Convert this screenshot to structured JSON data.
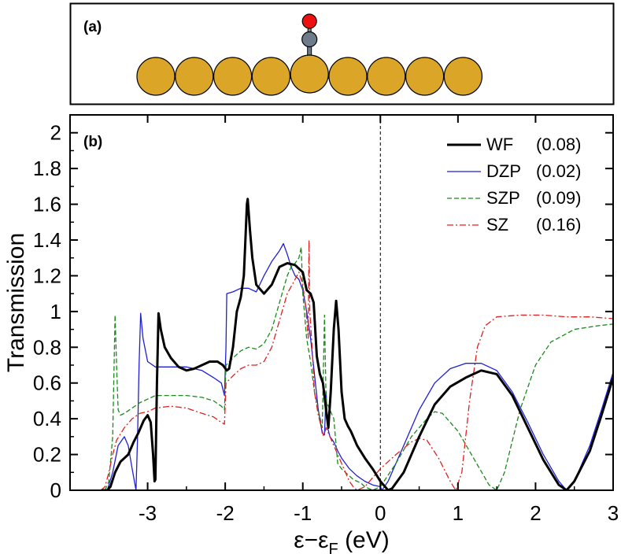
{
  "panel_a": {
    "label": "(a)",
    "gold_atom_color": "#dba628",
    "carbon_color": "#6d7b8b",
    "oxygen_color": "#ee1111",
    "gold_atom_count": 9,
    "adsorbate_on_atom_index": 4
  },
  "chart_data": {
    "type": "line",
    "panel_label": "(b)",
    "title": "",
    "xlabel_main": "ε−ε",
    "xlabel_sub": "F",
    "xlabel_unit": " (eV)",
    "ylabel": "Transmission",
    "xlim": [
      -4,
      3
    ],
    "ylim": [
      0,
      2.1
    ],
    "xticks": [
      -3,
      -2,
      -1,
      0,
      1,
      2,
      3
    ],
    "xtick_labels": [
      "-3",
      "-2",
      "-1",
      "0",
      "1",
      "2",
      "3"
    ],
    "yticks": [
      0,
      0.2,
      0.4,
      0.6,
      0.8,
      1,
      1.2,
      1.4,
      1.6,
      1.8,
      2
    ],
    "ytick_labels": [
      "0",
      "0.2",
      "0.4",
      "0.6",
      "0.8",
      "1",
      "1.2",
      "1.4",
      "1.6",
      "1.8",
      "2"
    ],
    "fermi_line_x": 0,
    "legend_position": "top-right",
    "grid": false,
    "series": [
      {
        "name": "WF",
        "legend_value": "(0.08)",
        "color": "#000000",
        "dash": "",
        "width": 3,
        "points": [
          [
            -3.6,
            0
          ],
          [
            -3.52,
            0
          ],
          [
            -3.48,
            0.02
          ],
          [
            -3.42,
            0.1
          ],
          [
            -3.35,
            0.16
          ],
          [
            -3.25,
            0.2
          ],
          [
            -3.18,
            0.27
          ],
          [
            -3.12,
            0.32
          ],
          [
            -3.05,
            0.39
          ],
          [
            -3.0,
            0.42
          ],
          [
            -2.96,
            0.38
          ],
          [
            -2.93,
            0.2
          ],
          [
            -2.91,
            0.05
          ],
          [
            -2.9,
            0.06
          ],
          [
            -2.88,
            0.6
          ],
          [
            -2.86,
            0.99
          ],
          [
            -2.83,
            0.9
          ],
          [
            -2.78,
            0.8
          ],
          [
            -2.7,
            0.74
          ],
          [
            -2.6,
            0.69
          ],
          [
            -2.5,
            0.67
          ],
          [
            -2.4,
            0.68
          ],
          [
            -2.3,
            0.7
          ],
          [
            -2.2,
            0.72
          ],
          [
            -2.1,
            0.72
          ],
          [
            -2.03,
            0.7
          ],
          [
            -1.98,
            0.67
          ],
          [
            -1.95,
            0.68
          ],
          [
            -1.9,
            0.8
          ],
          [
            -1.85,
            1.0
          ],
          [
            -1.8,
            1.08
          ],
          [
            -1.76,
            1.2
          ],
          [
            -1.74,
            1.4
          ],
          [
            -1.72,
            1.6
          ],
          [
            -1.71,
            1.63
          ],
          [
            -1.68,
            1.45
          ],
          [
            -1.65,
            1.3
          ],
          [
            -1.6,
            1.15
          ],
          [
            -1.5,
            1.1
          ],
          [
            -1.4,
            1.15
          ],
          [
            -1.3,
            1.25
          ],
          [
            -1.2,
            1.27
          ],
          [
            -1.1,
            1.26
          ],
          [
            -1.0,
            1.22
          ],
          [
            -0.95,
            1.12
          ],
          [
            -0.9,
            1.1
          ],
          [
            -0.86,
            1.05
          ],
          [
            -0.82,
            0.75
          ],
          [
            -0.78,
            0.65
          ],
          [
            -0.74,
            0.6
          ],
          [
            -0.7,
            0.45
          ],
          [
            -0.67,
            0.35
          ],
          [
            -0.64,
            0.55
          ],
          [
            -0.6,
            0.9
          ],
          [
            -0.57,
            1.06
          ],
          [
            -0.54,
            0.9
          ],
          [
            -0.5,
            0.55
          ],
          [
            -0.46,
            0.4
          ],
          [
            -0.42,
            0.36
          ],
          [
            -0.38,
            0.33
          ],
          [
            -0.35,
            0.3
          ],
          [
            -0.3,
            0.25
          ],
          [
            -0.2,
            0.18
          ],
          [
            -0.1,
            0.12
          ],
          [
            0.0,
            0.05
          ],
          [
            0.1,
            0.0
          ],
          [
            0.15,
            0.01
          ],
          [
            0.3,
            0.1
          ],
          [
            0.5,
            0.3
          ],
          [
            0.7,
            0.48
          ],
          [
            0.9,
            0.58
          ],
          [
            1.1,
            0.63
          ],
          [
            1.3,
            0.67
          ],
          [
            1.5,
            0.65
          ],
          [
            1.7,
            0.53
          ],
          [
            1.9,
            0.35
          ],
          [
            2.1,
            0.17
          ],
          [
            2.3,
            0.03
          ],
          [
            2.4,
            0.0
          ],
          [
            2.5,
            0.05
          ],
          [
            2.7,
            0.22
          ],
          [
            2.85,
            0.42
          ],
          [
            3.0,
            0.63
          ]
        ]
      },
      {
        "name": "DZP",
        "legend_value": "(0.02)",
        "color": "#1f1fd6",
        "dash": "",
        "width": 1.3,
        "points": [
          [
            -3.6,
            0
          ],
          [
            -3.52,
            0
          ],
          [
            -3.45,
            0.1
          ],
          [
            -3.38,
            0.25
          ],
          [
            -3.3,
            0.3
          ],
          [
            -3.25,
            0.25
          ],
          [
            -3.2,
            0.12
          ],
          [
            -3.15,
            0.0
          ],
          [
            -3.13,
            0.3
          ],
          [
            -3.11,
            0.7
          ],
          [
            -3.09,
            0.99
          ],
          [
            -3.06,
            0.85
          ],
          [
            -3.0,
            0.72
          ],
          [
            -2.9,
            0.69
          ],
          [
            -2.7,
            0.69
          ],
          [
            -2.5,
            0.69
          ],
          [
            -2.3,
            0.67
          ],
          [
            -2.15,
            0.63
          ],
          [
            -2.05,
            0.6
          ],
          [
            -2.01,
            0.53
          ],
          [
            -1.99,
            0.8
          ],
          [
            -1.98,
            1.1
          ],
          [
            -1.9,
            1.11
          ],
          [
            -1.8,
            1.13
          ],
          [
            -1.7,
            1.13
          ],
          [
            -1.6,
            1.11
          ],
          [
            -1.5,
            1.2
          ],
          [
            -1.4,
            1.28
          ],
          [
            -1.3,
            1.34
          ],
          [
            -1.25,
            1.38
          ],
          [
            -1.2,
            1.32
          ],
          [
            -1.15,
            1.25
          ],
          [
            -1.1,
            1.2
          ],
          [
            -1.05,
            1.18
          ],
          [
            -1.0,
            1.12
          ],
          [
            -0.95,
            1.0
          ],
          [
            -0.9,
            0.85
          ],
          [
            -0.85,
            0.65
          ],
          [
            -0.8,
            0.45
          ],
          [
            -0.75,
            0.32
          ],
          [
            -0.72,
            0.31
          ],
          [
            -0.7,
            0.55
          ],
          [
            -0.68,
            0.35
          ],
          [
            -0.65,
            0.3
          ],
          [
            -0.6,
            0.27
          ],
          [
            -0.55,
            0.22
          ],
          [
            -0.5,
            0.18
          ],
          [
            -0.4,
            0.12
          ],
          [
            -0.3,
            0.08
          ],
          [
            -0.2,
            0.05
          ],
          [
            -0.1,
            0.03
          ],
          [
            0.0,
            0.02
          ],
          [
            0.02,
            0.0
          ],
          [
            0.1,
            0.05
          ],
          [
            0.3,
            0.25
          ],
          [
            0.5,
            0.45
          ],
          [
            0.7,
            0.6
          ],
          [
            0.9,
            0.68
          ],
          [
            1.1,
            0.71
          ],
          [
            1.3,
            0.71
          ],
          [
            1.5,
            0.67
          ],
          [
            1.7,
            0.55
          ],
          [
            1.9,
            0.38
          ],
          [
            2.1,
            0.2
          ],
          [
            2.3,
            0.05
          ],
          [
            2.4,
            0.0
          ],
          [
            2.5,
            0.05
          ],
          [
            2.7,
            0.25
          ],
          [
            2.85,
            0.45
          ],
          [
            3.0,
            0.66
          ]
        ]
      },
      {
        "name": "SZP",
        "legend_value": "(0.09)",
        "color": "#1b8a1b",
        "dash": "6,3",
        "width": 1.3,
        "points": [
          [
            -3.55,
            0
          ],
          [
            -3.5,
            0.05
          ],
          [
            -3.45,
            0.3
          ],
          [
            -3.42,
            0.98
          ],
          [
            -3.4,
            0.7
          ],
          [
            -3.38,
            0.45
          ],
          [
            -3.35,
            0.42
          ],
          [
            -3.3,
            0.43
          ],
          [
            -3.2,
            0.46
          ],
          [
            -3.1,
            0.49
          ],
          [
            -3.0,
            0.51
          ],
          [
            -2.9,
            0.53
          ],
          [
            -2.7,
            0.53
          ],
          [
            -2.5,
            0.53
          ],
          [
            -2.3,
            0.52
          ],
          [
            -2.15,
            0.5
          ],
          [
            -2.05,
            0.47
          ],
          [
            -2.01,
            0.45
          ],
          [
            -1.99,
            0.7
          ],
          [
            -1.9,
            0.74
          ],
          [
            -1.8,
            0.78
          ],
          [
            -1.7,
            0.8
          ],
          [
            -1.6,
            0.79
          ],
          [
            -1.5,
            0.82
          ],
          [
            -1.4,
            0.9
          ],
          [
            -1.3,
            1.05
          ],
          [
            -1.2,
            1.2
          ],
          [
            -1.15,
            1.25
          ],
          [
            -1.1,
            1.27
          ],
          [
            -1.05,
            1.3
          ],
          [
            -1.02,
            1.36
          ],
          [
            -1.0,
            1.1
          ],
          [
            -0.98,
            1.0
          ],
          [
            -0.95,
            0.85
          ],
          [
            -0.9,
            0.72
          ],
          [
            -0.85,
            0.55
          ],
          [
            -0.8,
            0.45
          ],
          [
            -0.75,
            0.35
          ],
          [
            -0.72,
            0.98
          ],
          [
            -0.7,
            0.5
          ],
          [
            -0.65,
            0.45
          ],
          [
            -0.6,
            0.4
          ],
          [
            -0.55,
            0.15
          ],
          [
            -0.5,
            0.12
          ],
          [
            -0.45,
            0.1
          ],
          [
            -0.4,
            0.08
          ],
          [
            -0.35,
            0.06
          ],
          [
            -0.3,
            0.05
          ],
          [
            -0.25,
            0.04
          ],
          [
            -0.2,
            0.02
          ],
          [
            -0.1,
            0.0
          ],
          [
            0.0,
            0.02
          ],
          [
            0.2,
            0.15
          ],
          [
            0.4,
            0.3
          ],
          [
            0.6,
            0.4
          ],
          [
            0.7,
            0.44
          ],
          [
            0.8,
            0.43
          ],
          [
            1.0,
            0.33
          ],
          [
            1.2,
            0.18
          ],
          [
            1.4,
            0.03
          ],
          [
            1.5,
            0.0
          ],
          [
            1.6,
            0.1
          ],
          [
            1.8,
            0.45
          ],
          [
            2.0,
            0.7
          ],
          [
            2.2,
            0.83
          ],
          [
            2.5,
            0.9
          ],
          [
            2.8,
            0.92
          ],
          [
            3.0,
            0.93
          ]
        ]
      },
      {
        "name": "SZ",
        "legend_value": "(0.16)",
        "color": "#e02020",
        "dash": "8,3,2,3",
        "width": 1.3,
        "points": [
          [
            -3.6,
            0
          ],
          [
            -3.55,
            0.02
          ],
          [
            -3.5,
            0.1
          ],
          [
            -3.45,
            0.2
          ],
          [
            -3.4,
            0.28
          ],
          [
            -3.3,
            0.35
          ],
          [
            -3.2,
            0.4
          ],
          [
            -3.1,
            0.43
          ],
          [
            -3.0,
            0.44
          ],
          [
            -2.9,
            0.46
          ],
          [
            -2.7,
            0.47
          ],
          [
            -2.5,
            0.46
          ],
          [
            -2.3,
            0.43
          ],
          [
            -2.15,
            0.41
          ],
          [
            -2.05,
            0.38
          ],
          [
            -2.01,
            0.37
          ],
          [
            -1.99,
            0.6
          ],
          [
            -1.9,
            0.64
          ],
          [
            -1.8,
            0.68
          ],
          [
            -1.7,
            0.7
          ],
          [
            -1.6,
            0.7
          ],
          [
            -1.5,
            0.72
          ],
          [
            -1.4,
            0.8
          ],
          [
            -1.3,
            0.95
          ],
          [
            -1.2,
            1.1
          ],
          [
            -1.1,
            1.18
          ],
          [
            -1.05,
            1.22
          ],
          [
            -1.0,
            1.15
          ],
          [
            -0.96,
            1.02
          ],
          [
            -0.93,
            0.85
          ],
          [
            -0.92,
            1.4
          ],
          [
            -0.91,
            1.0
          ],
          [
            -0.88,
            0.8
          ],
          [
            -0.85,
            0.55
          ],
          [
            -0.8,
            0.42
          ],
          [
            -0.76,
            0.35
          ],
          [
            -0.73,
            0.3
          ],
          [
            -0.7,
            0.35
          ],
          [
            -0.65,
            0.3
          ],
          [
            -0.6,
            0.25
          ],
          [
            -0.55,
            0.2
          ],
          [
            -0.5,
            0.15
          ],
          [
            -0.45,
            0.1
          ],
          [
            -0.4,
            0.05
          ],
          [
            -0.35,
            0.02
          ],
          [
            -0.3,
            0.0
          ],
          [
            -0.2,
            0.02
          ],
          [
            -0.1,
            0.07
          ],
          [
            0.0,
            0.12
          ],
          [
            0.2,
            0.2
          ],
          [
            0.4,
            0.27
          ],
          [
            0.5,
            0.29
          ],
          [
            0.6,
            0.28
          ],
          [
            0.75,
            0.18
          ],
          [
            0.9,
            0.05
          ],
          [
            0.97,
            0.0
          ],
          [
            1.05,
            0.1
          ],
          [
            1.15,
            0.5
          ],
          [
            1.25,
            0.8
          ],
          [
            1.35,
            0.92
          ],
          [
            1.5,
            0.97
          ],
          [
            1.8,
            0.98
          ],
          [
            2.1,
            0.98
          ],
          [
            2.4,
            0.97
          ],
          [
            2.7,
            0.97
          ],
          [
            3.0,
            0.96
          ]
        ]
      }
    ]
  }
}
